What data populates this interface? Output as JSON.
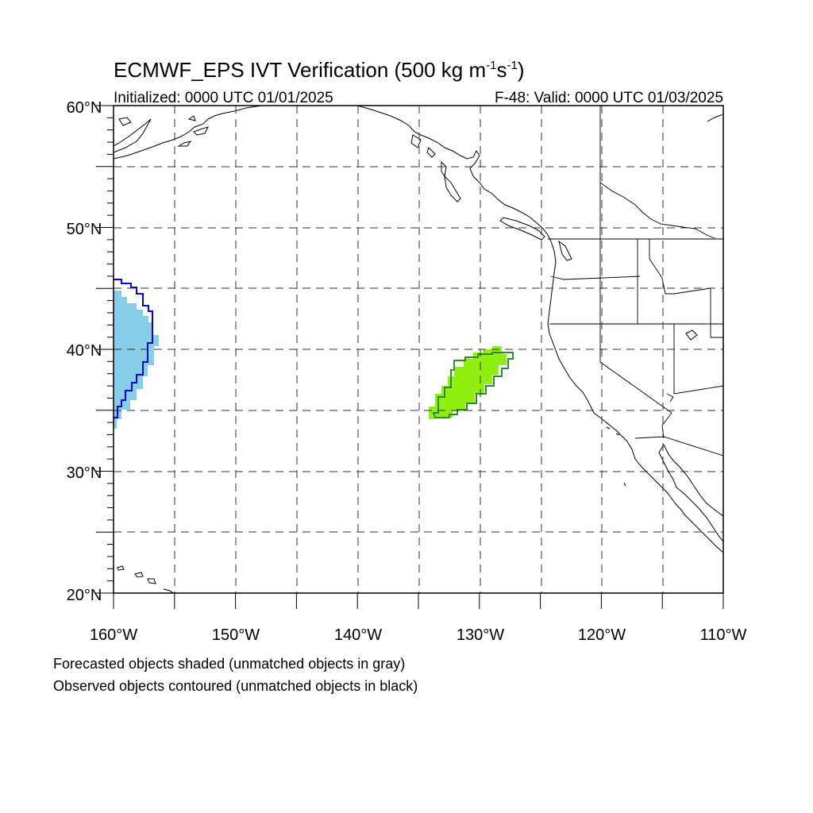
{
  "title": {
    "main": "ECMWF_EPS IVT Verification (500 kg m",
    "exp1": "-1",
    "mid": "s",
    "exp2": "-1",
    "end": ")"
  },
  "initialized": "Initialized: 0000 UTC 01/01/2025",
  "valid": "F-48: Valid: 0000 UTC 01/03/2025",
  "map": {
    "lon_range": [
      -160,
      -110
    ],
    "lat_range": [
      20,
      60
    ],
    "lat_labels": [
      "60°N",
      "50°N",
      "40°N",
      "30°N",
      "20°N"
    ],
    "lon_labels": [
      "160°W",
      "150°W",
      "140°W",
      "130°W",
      "120°W",
      "110°W"
    ],
    "grid": "dashed every 5°"
  },
  "objects": {
    "forecast_west_color": "#87ceeb",
    "observed_west_color": "#0000e0",
    "forecast_central_color": "#90ee10",
    "observed_central_color": "#2e8b2e"
  },
  "notes": {
    "line1": "Forecasted objects shaded (unmatched objects in gray)",
    "line2": "Observed objects contoured (unmatched objects in black)"
  }
}
